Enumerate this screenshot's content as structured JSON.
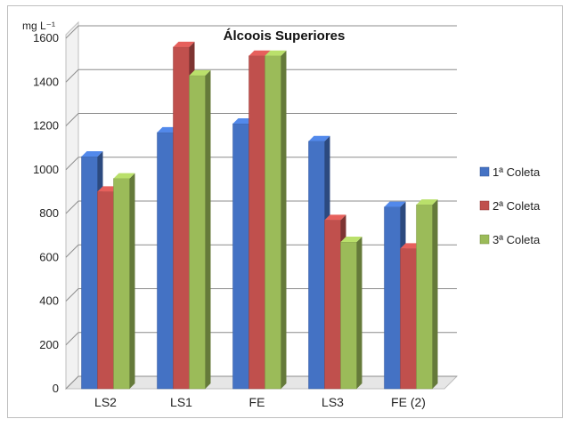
{
  "chart_data": {
    "type": "bar",
    "title": "Álcoois Superiores",
    "ylabel": "mg L⁻¹",
    "xlabel": "",
    "categories": [
      "LS2",
      "LS1",
      "FE",
      "LS3",
      "FE (2)"
    ],
    "series": [
      {
        "name": "1ª Coleta",
        "color": "#4472c4",
        "values": [
          1060,
          1170,
          1210,
          1130,
          830
        ]
      },
      {
        "name": "2ª Coleta",
        "color": "#c0504d",
        "values": [
          900,
          1560,
          1520,
          770,
          640
        ]
      },
      {
        "name": "3ª Coleta",
        "color": "#9bbb59",
        "values": [
          960,
          1430,
          1520,
          670,
          840
        ]
      }
    ],
    "ylim": [
      0,
      1600
    ],
    "yticks": [
      0,
      200,
      400,
      600,
      800,
      1000,
      1200,
      1400,
      1600
    ],
    "grid": true,
    "legend_position": "right",
    "style": "3d-clustered-bar"
  }
}
